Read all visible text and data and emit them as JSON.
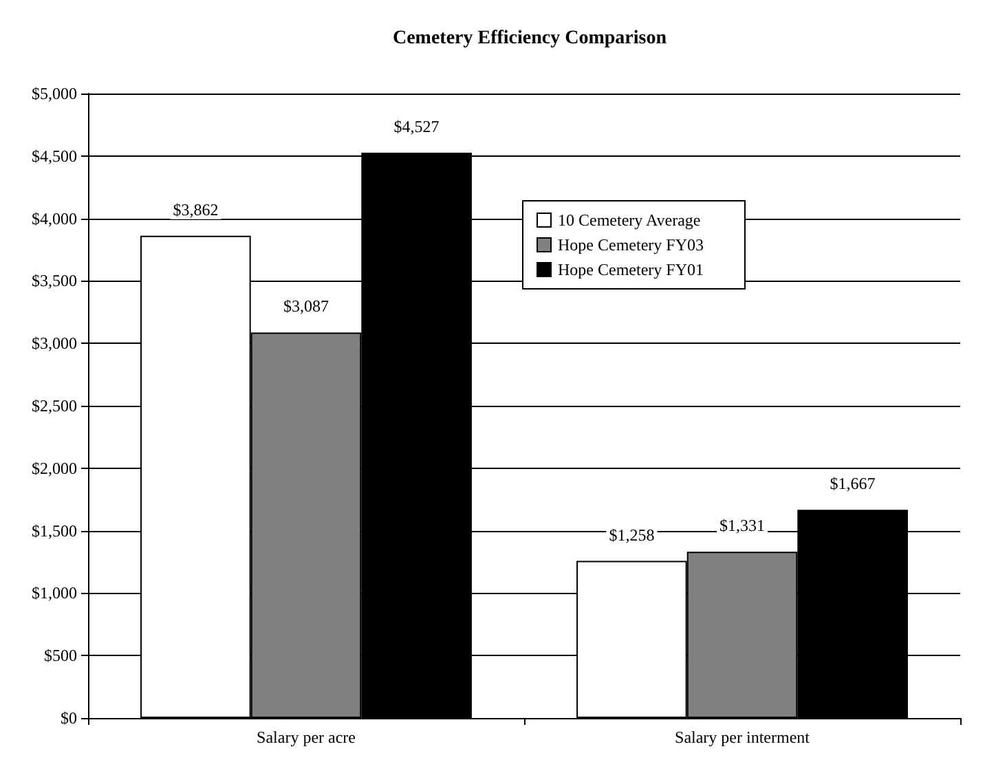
{
  "chart_data": {
    "type": "bar",
    "title": "Cemetery Efficiency Comparison",
    "categories": [
      "Salary per acre",
      "Salary per interment"
    ],
    "series": [
      {
        "name": "10 Cemetery Average",
        "color": "#ffffff",
        "values": [
          3862,
          1258
        ],
        "value_labels": [
          "$3,862",
          "$1,258"
        ]
      },
      {
        "name": "Hope Cemetery FY03",
        "color": "#808080",
        "values": [
          3087,
          1331
        ],
        "value_labels": [
          "$3,087",
          "$1,331"
        ]
      },
      {
        "name": "Hope Cemetery FY01",
        "color": "#000000",
        "values": [
          4527,
          1667
        ],
        "value_labels": [
          "$4,527",
          "$1,667"
        ]
      }
    ],
    "ylim": [
      0,
      5000
    ],
    "yticks": [
      {
        "value": 0,
        "label": "$0"
      },
      {
        "value": 500,
        "label": "$500"
      },
      {
        "value": 1000,
        "label": "$1,000"
      },
      {
        "value": 1500,
        "label": "$1,500"
      },
      {
        "value": 2000,
        "label": "$2,000"
      },
      {
        "value": 2500,
        "label": "$2,500"
      },
      {
        "value": 3000,
        "label": "$3,000"
      },
      {
        "value": 3500,
        "label": "$3,500"
      },
      {
        "value": 4000,
        "label": "$4,000"
      },
      {
        "value": 4500,
        "label": "$4,500"
      },
      {
        "value": 5000,
        "label": "$5,000"
      }
    ],
    "grid": "y",
    "legend": "right"
  }
}
